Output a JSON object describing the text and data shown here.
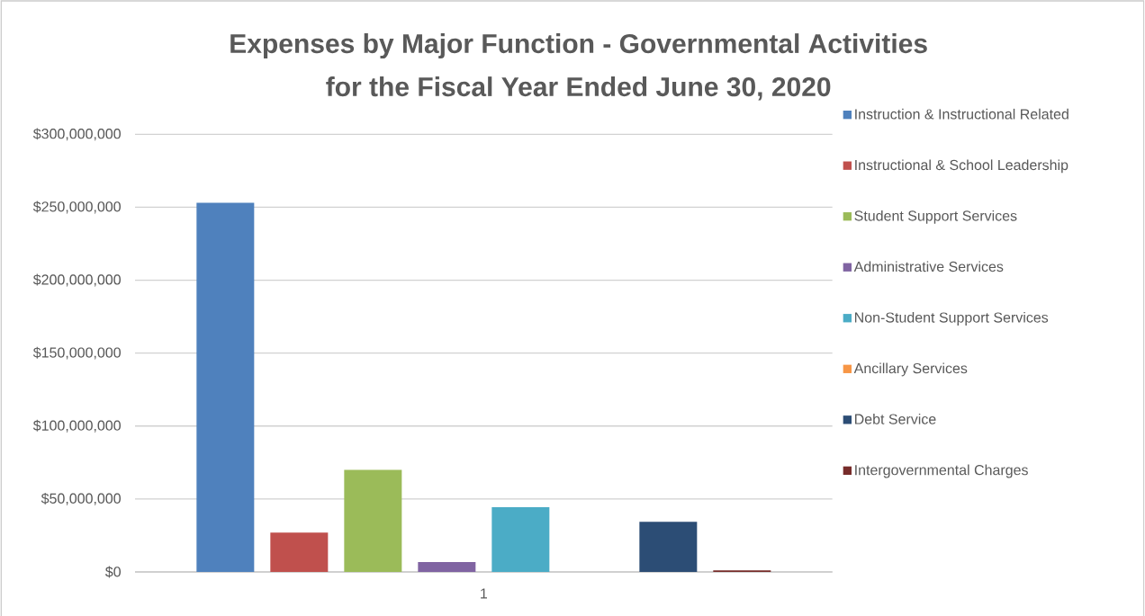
{
  "chart_data": {
    "type": "bar",
    "title": "Expenses by Major Function - Governmental Activities\nfor the Fiscal Year Ended June 30, 2020",
    "categories": [
      "1"
    ],
    "series": [
      {
        "name": "Instruction & Instructional Related",
        "color": "#4f81bd",
        "values": [
          253000000
        ]
      },
      {
        "name": "Instructional & School Leadership",
        "color": "#c0504d",
        "values": [
          27000000
        ]
      },
      {
        "name": "Student Support Services",
        "color": "#9bbb59",
        "values": [
          70000000
        ]
      },
      {
        "name": "Administrative Services",
        "color": "#8064a2",
        "values": [
          6700000
        ]
      },
      {
        "name": "Non-Student Support Services",
        "color": "#4bacc6",
        "values": [
          44400000
        ]
      },
      {
        "name": "Ancillary Services",
        "color": "#f79646",
        "values": [
          0
        ]
      },
      {
        "name": "Debt Service",
        "color": "#2c4d75",
        "values": [
          34300000
        ]
      },
      {
        "name": "Intergovernmental Charges",
        "color": "#772c2a",
        "values": [
          1000000
        ]
      }
    ],
    "ylim": [
      0,
      300000000
    ],
    "yticks": [
      {
        "value": 0,
        "label": "$0"
      },
      {
        "value": 50000000,
        "label": "$50,000,000"
      },
      {
        "value": 100000000,
        "label": "$100,000,000"
      },
      {
        "value": 150000000,
        "label": "$150,000,000"
      },
      {
        "value": 200000000,
        "label": "$200,000,000"
      },
      {
        "value": 250000000,
        "label": "$250,000,000"
      },
      {
        "value": 300000000,
        "label": "$300,000,000"
      }
    ],
    "grid": "y",
    "legend": "right"
  }
}
